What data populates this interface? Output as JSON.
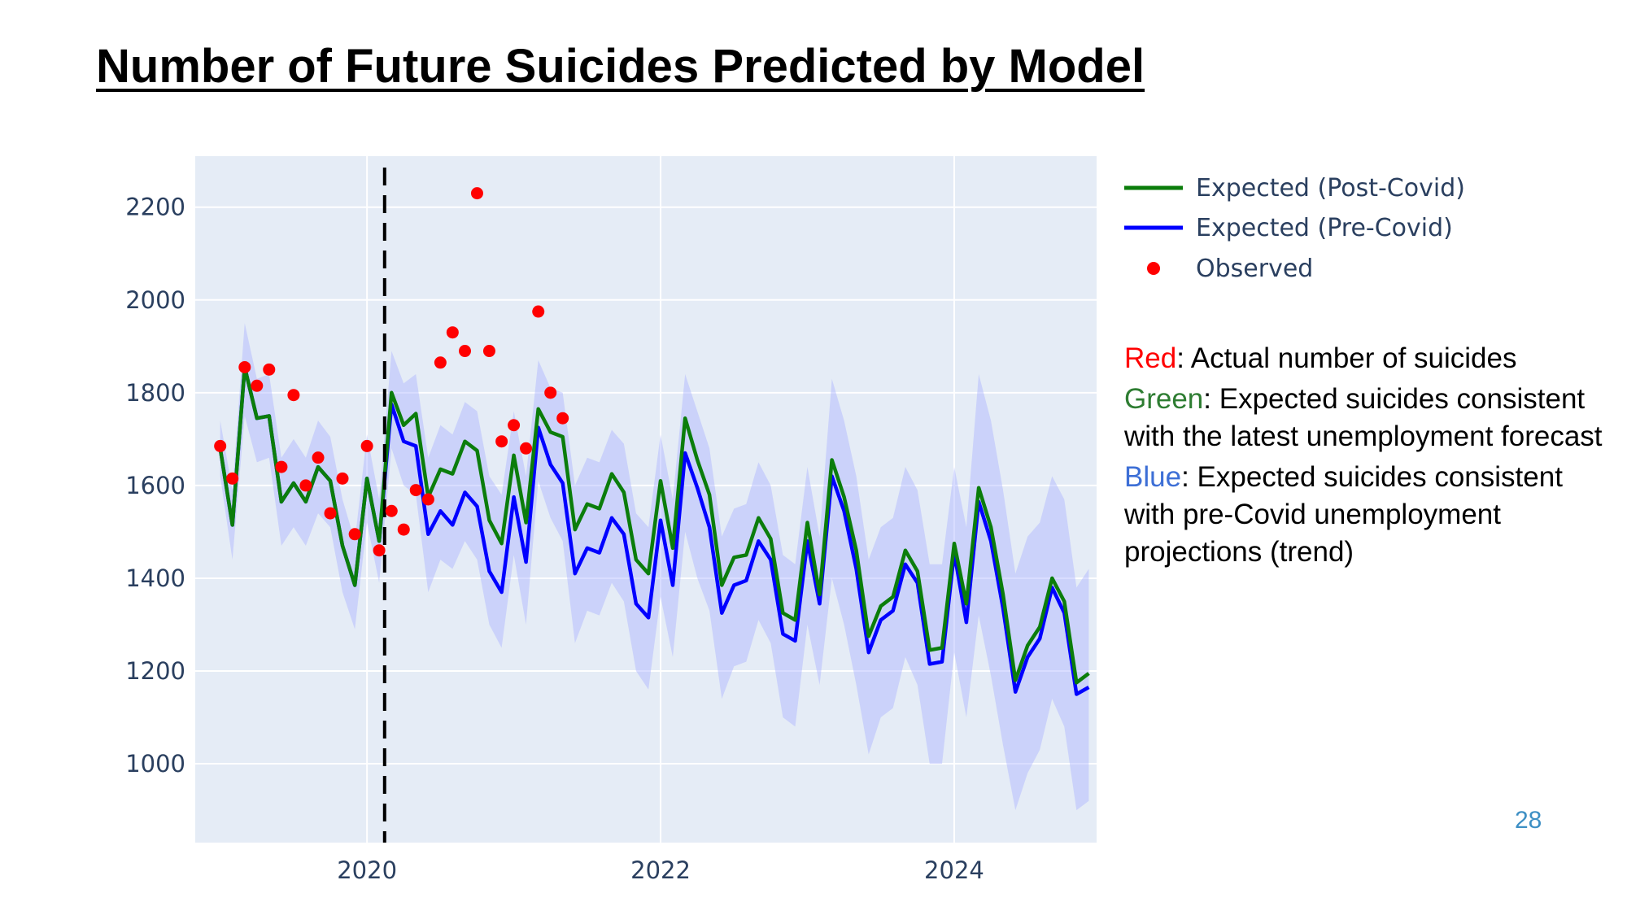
{
  "slide": {
    "title": "Number of Future Suicides Predicted by Model",
    "page_number": "28"
  },
  "notes": [
    {
      "key": "Red",
      "text": ": Actual number of suicides",
      "color": "#ff0000"
    },
    {
      "key": "Green",
      "text": ": Expected suicides consistent with the latest unemployment forecast",
      "color": "#2e7d32"
    },
    {
      "key": "Blue",
      "text": ": Expected suicides consistent with pre-Covid unemployment projections (trend)",
      "color": "#3d6fd6"
    }
  ],
  "chart_data": {
    "type": "line",
    "title": "",
    "xlabel": "",
    "ylabel": "",
    "xlim": [
      2018.83,
      2024.97
    ],
    "ylim": [
      830,
      2310
    ],
    "x_ticks": [
      2020,
      2022,
      2024
    ],
    "y_ticks": [
      1000,
      1200,
      1400,
      1600,
      1800,
      2000,
      2200
    ],
    "grid": true,
    "plot_background": "#e5ecf6",
    "legend_position": "top-right",
    "vertical_marker": {
      "x": 2020.12,
      "style": "dashed",
      "color": "#000000"
    },
    "x": [
      2019.0,
      2019.083,
      2019.167,
      2019.25,
      2019.333,
      2019.417,
      2019.5,
      2019.583,
      2019.667,
      2019.75,
      2019.833,
      2019.917,
      2020.0,
      2020.083,
      2020.167,
      2020.25,
      2020.333,
      2020.417,
      2020.5,
      2020.583,
      2020.667,
      2020.75,
      2020.833,
      2020.917,
      2021.0,
      2021.083,
      2021.167,
      2021.25,
      2021.333,
      2021.417,
      2021.5,
      2021.583,
      2021.667,
      2021.75,
      2021.833,
      2021.917,
      2022.0,
      2022.083,
      2022.167,
      2022.25,
      2022.333,
      2022.417,
      2022.5,
      2022.583,
      2022.667,
      2022.75,
      2022.833,
      2022.917,
      2023.0,
      2023.083,
      2023.167,
      2023.25,
      2023.333,
      2023.417,
      2023.5,
      2023.583,
      2023.667,
      2023.75,
      2023.833,
      2023.917,
      2024.0,
      2024.083,
      2024.167,
      2024.25,
      2024.333,
      2024.417,
      2024.5,
      2024.583,
      2024.667,
      2024.75,
      2024.833,
      2024.917
    ],
    "series": [
      {
        "name": "Expected (Post-Covid)",
        "kind": "line",
        "color": "#0b7d0b",
        "values": [
          1680,
          1515,
          1855,
          1745,
          1750,
          1565,
          1605,
          1565,
          1640,
          1610,
          1470,
          1385,
          1615,
          1480,
          1800,
          1730,
          1755,
          1575,
          1635,
          1625,
          1695,
          1675,
          1525,
          1475,
          1665,
          1520,
          1765,
          1715,
          1705,
          1505,
          1560,
          1550,
          1625,
          1585,
          1440,
          1410,
          1610,
          1465,
          1745,
          1655,
          1580,
          1385,
          1445,
          1450,
          1530,
          1485,
          1325,
          1310,
          1520,
          1365,
          1655,
          1575,
          1460,
          1275,
          1340,
          1360,
          1460,
          1415,
          1245,
          1250,
          1475,
          1345,
          1595,
          1510,
          1365,
          1180,
          1255,
          1295,
          1400,
          1350,
          1175,
          1195
        ]
      },
      {
        "name": "Expected (Pre-Covid)",
        "kind": "line",
        "color": "#0000ff",
        "values": [
          1680,
          1515,
          1855,
          1745,
          1750,
          1565,
          1605,
          1565,
          1640,
          1610,
          1470,
          1385,
          1615,
          1480,
          1775,
          1695,
          1685,
          1495,
          1545,
          1515,
          1585,
          1555,
          1415,
          1370,
          1575,
          1435,
          1725,
          1645,
          1605,
          1410,
          1465,
          1455,
          1530,
          1495,
          1345,
          1315,
          1525,
          1385,
          1670,
          1595,
          1510,
          1325,
          1385,
          1395,
          1480,
          1440,
          1280,
          1265,
          1480,
          1345,
          1620,
          1545,
          1420,
          1240,
          1310,
          1330,
          1430,
          1390,
          1215,
          1220,
          1455,
          1305,
          1565,
          1480,
          1335,
          1155,
          1230,
          1270,
          1380,
          1325,
          1150,
          1165
        ]
      },
      {
        "name": "Observed",
        "kind": "scatter",
        "color": "#ff0000",
        "x": [
          2019.0,
          2019.083,
          2019.167,
          2019.25,
          2019.333,
          2019.417,
          2019.5,
          2019.583,
          2019.667,
          2019.75,
          2019.833,
          2019.917,
          2020.0,
          2020.083,
          2020.167,
          2020.25,
          2020.333,
          2020.417,
          2020.5,
          2020.583,
          2020.667,
          2020.75,
          2020.833,
          2020.917,
          2021.0,
          2021.083,
          2021.167,
          2021.25,
          2021.333
        ],
        "values": [
          1685,
          1615,
          1855,
          1815,
          1850,
          1640,
          1795,
          1600,
          1660,
          1540,
          1615,
          1495,
          1685,
          1460,
          1545,
          1505,
          1590,
          1570,
          1865,
          1930,
          1890,
          2230,
          1890,
          1695,
          1730,
          1680,
          1975,
          1800,
          1745
        ]
      }
    ],
    "band": {
      "name": "",
      "color": "#aab4ff",
      "upper": [
        1740,
        1590,
        1950,
        1830,
        1840,
        1660,
        1700,
        1660,
        1740,
        1705,
        1570,
        1480,
        1710,
        1570,
        1890,
        1820,
        1840,
        1660,
        1730,
        1710,
        1780,
        1760,
        1620,
        1580,
        1760,
        1620,
        1870,
        1810,
        1800,
        1600,
        1660,
        1650,
        1720,
        1690,
        1540,
        1510,
        1710,
        1570,
        1840,
        1760,
        1680,
        1490,
        1550,
        1560,
        1650,
        1600,
        1450,
        1430,
        1640,
        1490,
        1830,
        1740,
        1620,
        1440,
        1510,
        1530,
        1640,
        1590,
        1430,
        1430,
        1640,
        1510,
        1840,
        1740,
        1590,
        1410,
        1490,
        1520,
        1620,
        1570,
        1380,
        1420
      ],
      "lower": [
        1620,
        1440,
        1750,
        1650,
        1660,
        1470,
        1510,
        1470,
        1540,
        1510,
        1370,
        1290,
        1520,
        1390,
        1680,
        1600,
        1580,
        1370,
        1440,
        1420,
        1480,
        1440,
        1300,
        1250,
        1450,
        1300,
        1610,
        1530,
        1480,
        1260,
        1330,
        1320,
        1390,
        1350,
        1200,
        1160,
        1360,
        1230,
        1500,
        1400,
        1330,
        1140,
        1210,
        1220,
        1310,
        1260,
        1100,
        1080,
        1300,
        1170,
        1400,
        1300,
        1170,
        1020,
        1100,
        1120,
        1230,
        1170,
        1000,
        1000,
        1240,
        1100,
        1320,
        1190,
        1040,
        900,
        980,
        1030,
        1140,
        1080,
        900,
        920
      ]
    }
  }
}
